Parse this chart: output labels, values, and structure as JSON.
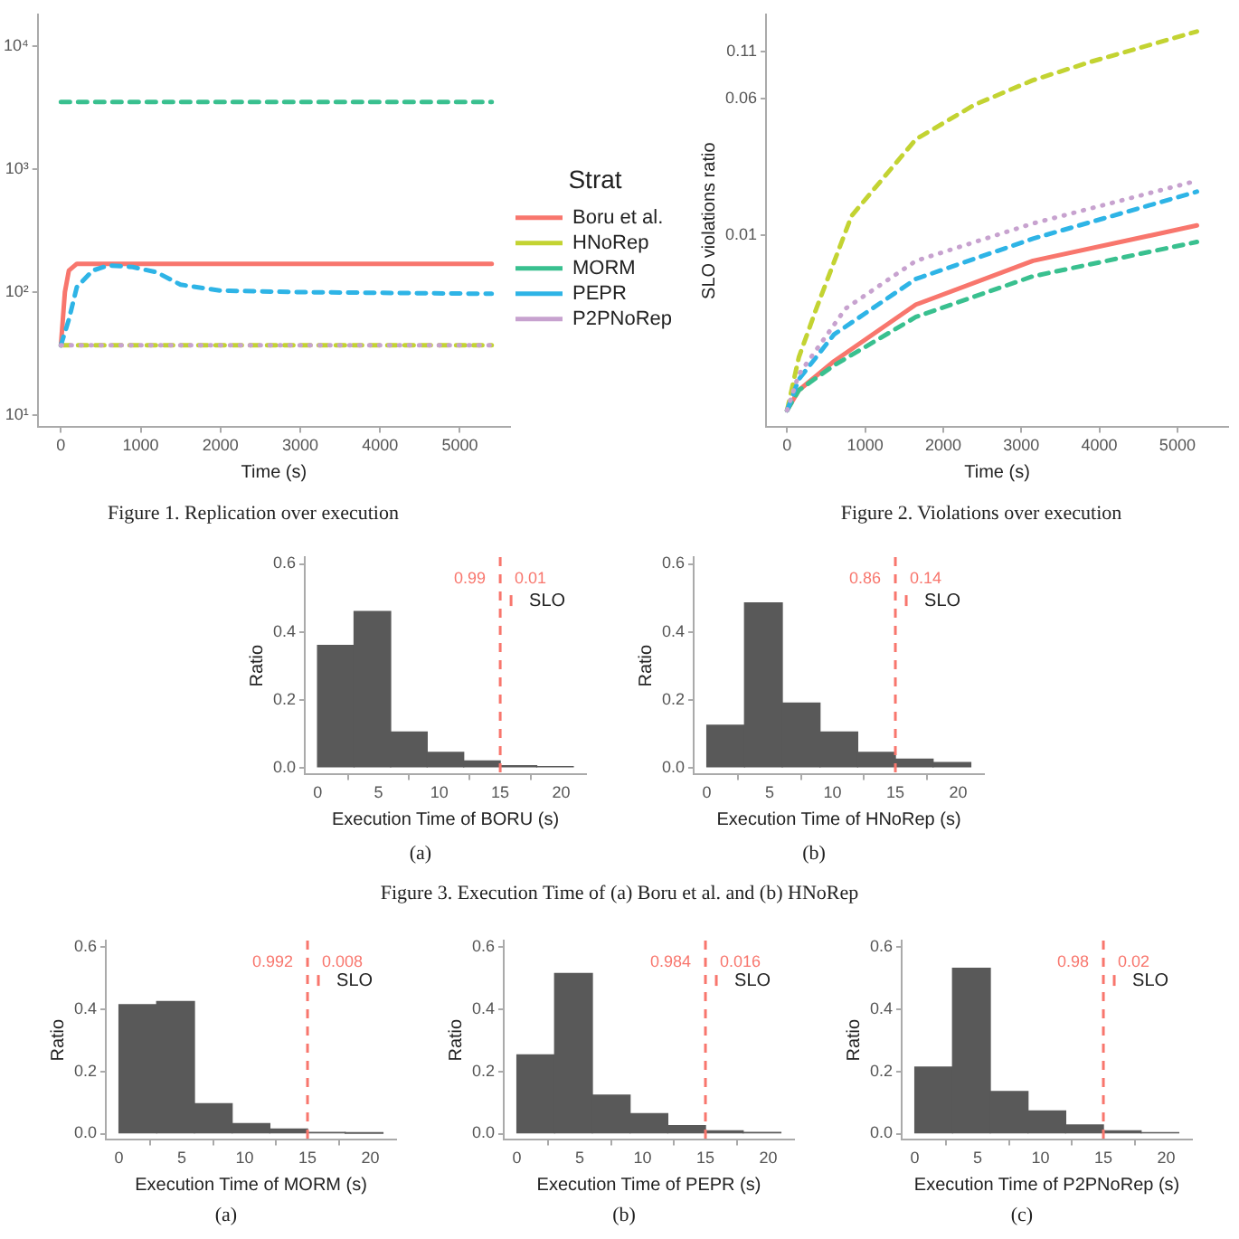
{
  "chart_data": [
    {
      "type": "line",
      "xlabel": "Time (s)",
      "legend_title": "Strat",
      "legend": "right",
      "log": "y",
      "marker": "none",
      "annotations": [
        "Figure 1.   Replication over execution"
      ],
      "xlim": [
        -290,
        5630
      ],
      "xticks": [
        0,
        1000,
        2000,
        3000,
        4000,
        5000
      ],
      "ylim": [
        8,
        18000
      ],
      "yticks": [
        {
          "value": 10,
          "label": "10¹"
        },
        {
          "value": 100,
          "label": "10²"
        },
        {
          "value": 1000,
          "label": "10³"
        },
        {
          "value": 10000,
          "label": "10⁴"
        }
      ],
      "series": [
        {
          "name": "Boru et al.",
          "color": "#f8766d",
          "line_style": "solid",
          "x": [
            0,
            50,
            100,
            200,
            5400
          ],
          "values": [
            37,
            100,
            150,
            170,
            170
          ]
        },
        {
          "name": "HNoRep",
          "color": "#c3d332",
          "line_style": "dashed",
          "x": [
            0,
            5400
          ],
          "values": [
            37,
            37
          ]
        },
        {
          "name": "MORM",
          "color": "#39c08f",
          "line_style": "dashed",
          "x": [
            0,
            5400
          ],
          "values": [
            3500,
            3500
          ]
        },
        {
          "name": "PEPR",
          "color": "#2eb4e6",
          "line_style": "dashed",
          "x": [
            0,
            100,
            200,
            400,
            600,
            900,
            1200,
            1500,
            2000,
            3000,
            5400
          ],
          "values": [
            37,
            60,
            110,
            150,
            165,
            160,
            145,
            115,
            103,
            100,
            97
          ]
        },
        {
          "name": "P2PNoRep",
          "color": "#c7a2cf",
          "line_style": "dotted",
          "x": [
            0,
            5400
          ],
          "values": [
            37,
            37
          ]
        }
      ]
    },
    {
      "type": "line",
      "xlabel": "Time (s)",
      "ylabel": "SLO violations ratio",
      "log": "y",
      "marker": "none",
      "annotations": [
        "Figure 2.   Violations over execution"
      ],
      "xlim": [
        -270,
        5650
      ],
      "xticks": [
        0,
        1000,
        2000,
        3000,
        4000,
        5000
      ],
      "ylim": [
        0.0008,
        0.18
      ],
      "yticks": [
        0.01,
        0.06,
        0.11
      ],
      "series": [
        {
          "color": "#f8766d",
          "line_style": "solid",
          "x": [
            0,
            150,
            600,
            1650,
            3150,
            5250
          ],
          "values": [
            0.001,
            0.0013,
            0.0019,
            0.004,
            0.0071,
            0.0113
          ]
        },
        {
          "color": "#c3d332",
          "line_style": "dashed",
          "x": [
            0,
            150,
            375,
            825,
            1650,
            2400,
            3150,
            3900,
            5250
          ],
          "values": [
            0.001,
            0.002,
            0.0038,
            0.0128,
            0.035,
            0.055,
            0.076,
            0.097,
            0.144
          ]
        },
        {
          "color": "#39c08f",
          "line_style": "dashed",
          "x": [
            0,
            150,
            600,
            1650,
            3150,
            5250
          ],
          "values": [
            0.001,
            0.0013,
            0.0018,
            0.0034,
            0.0058,
            0.0091
          ]
        },
        {
          "color": "#2eb4e6",
          "line_style": "dashed",
          "x": [
            0,
            150,
            600,
            1650,
            3150,
            5250
          ],
          "values": [
            0.001,
            0.0015,
            0.0027,
            0.0056,
            0.0095,
            0.0176
          ]
        },
        {
          "color": "#c7a2cf",
          "line_style": "dotted",
          "x": [
            0,
            150,
            750,
            1650,
            3150,
            5250
          ],
          "values": [
            0.001,
            0.0016,
            0.0038,
            0.0071,
            0.0116,
            0.0203
          ]
        }
      ]
    },
    {
      "type": "histogram",
      "xlabel": "Execution Time of BORU (s)",
      "ylabel": "Ratio",
      "color": "#595959",
      "bins": [
        0,
        3,
        6,
        9,
        12,
        15,
        18,
        21
      ],
      "values": [
        0.36,
        0.46,
        0.105,
        0.045,
        0.02,
        0.006,
        0.003
      ],
      "xlim": [
        -1.05,
        22.05
      ],
      "xticks": [
        0,
        5,
        10,
        15,
        20
      ],
      "ylim": [
        -0.02,
        0.62
      ],
      "yticks": [
        {
          "value": 0,
          "label": "0.0"
        },
        0.2,
        0.4,
        0.6
      ],
      "ref_lines": [
        {
          "axis": "x",
          "value": 15,
          "label": "SLO",
          "color": "#f8766d",
          "line_style": "dashed"
        }
      ],
      "annotations": [
        "0.99",
        "0.01",
        "(a)"
      ]
    },
    {
      "type": "histogram",
      "xlabel": "Execution Time of HNoRep (s)",
      "ylabel": "Ratio",
      "color": "#595959",
      "bins": [
        0,
        3,
        6,
        9,
        12,
        15,
        18,
        21
      ],
      "values": [
        0.125,
        0.485,
        0.19,
        0.105,
        0.045,
        0.025,
        0.015
      ],
      "xlim": [
        -1.05,
        22.05
      ],
      "xticks": [
        0,
        5,
        10,
        15,
        20
      ],
      "ylim": [
        -0.02,
        0.62
      ],
      "yticks": [
        {
          "value": 0,
          "label": "0.0"
        },
        0.2,
        0.4,
        0.6
      ],
      "ref_lines": [
        {
          "axis": "x",
          "value": 15,
          "label": "SLO",
          "color": "#f8766d",
          "line_style": "dashed"
        }
      ],
      "annotations": [
        "0.86",
        "0.14",
        "(b)",
        "Figure 3.   Execution Time of (a) Boru et al. and (b) HNoRep"
      ]
    },
    {
      "type": "histogram",
      "xlabel": "Execution Time of MORM (s)",
      "ylabel": "Ratio",
      "color": "#595959",
      "bins": [
        0,
        3,
        6,
        9,
        12,
        15,
        18,
        21
      ],
      "values": [
        0.414,
        0.424,
        0.096,
        0.032,
        0.015,
        0.004,
        0.001
      ],
      "xlim": [
        -1.05,
        22.05
      ],
      "xticks": [
        0,
        5,
        10,
        15,
        20
      ],
      "ylim": [
        -0.02,
        0.62
      ],
      "yticks": [
        {
          "value": 0,
          "label": "0.0"
        },
        0.2,
        0.4,
        0.6
      ],
      "ref_lines": [
        {
          "axis": "x",
          "value": 15,
          "label": "SLO",
          "color": "#f8766d",
          "line_style": "dashed"
        }
      ],
      "annotations": [
        "0.992",
        "0.008",
        "(a)"
      ]
    },
    {
      "type": "histogram",
      "xlabel": "Execution Time of PEPR (s)",
      "ylabel": "Ratio",
      "color": "#595959",
      "bins": [
        0,
        3,
        6,
        9,
        12,
        15,
        18,
        21
      ],
      "values": [
        0.253,
        0.514,
        0.124,
        0.064,
        0.026,
        0.009,
        0.004
      ],
      "xlim": [
        -1.05,
        22.05
      ],
      "xticks": [
        0,
        5,
        10,
        15,
        20
      ],
      "ylim": [
        -0.02,
        0.62
      ],
      "yticks": [
        {
          "value": 0,
          "label": "0.0"
        },
        0.2,
        0.4,
        0.6
      ],
      "ref_lines": [
        {
          "axis": "x",
          "value": 15,
          "label": "SLO",
          "color": "#f8766d",
          "line_style": "dashed"
        }
      ],
      "annotations": [
        "0.984",
        "0.016",
        "(b)"
      ]
    },
    {
      "type": "histogram",
      "xlabel": "Execution Time of P2PNoRep (s)",
      "ylabel": "Ratio",
      "color": "#595959",
      "bins": [
        0,
        3,
        6,
        9,
        12,
        15,
        18,
        21
      ],
      "values": [
        0.214,
        0.531,
        0.135,
        0.073,
        0.028,
        0.009,
        0.003
      ],
      "xlim": [
        -1.05,
        22.05
      ],
      "xticks": [
        0,
        5,
        10,
        15,
        20
      ],
      "ylim": [
        -0.02,
        0.62
      ],
      "yticks": [
        {
          "value": 0,
          "label": "0.0"
        },
        0.2,
        0.4,
        0.6
      ],
      "ref_lines": [
        {
          "axis": "x",
          "value": 15,
          "label": "SLO",
          "color": "#f8766d",
          "line_style": "dashed"
        }
      ],
      "annotations": [
        "0.98",
        "0.02",
        "(c)"
      ]
    }
  ]
}
